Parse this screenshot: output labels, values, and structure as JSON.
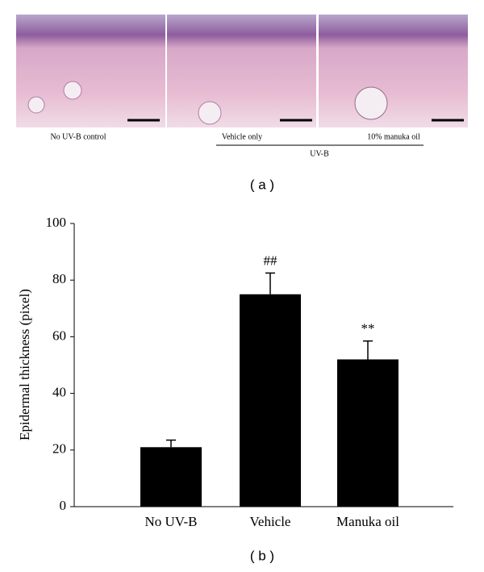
{
  "panel_a": {
    "image_labels": [
      "No UV-B control",
      "Vehicle only",
      "10% manuka oil"
    ],
    "group_label": "UV-B",
    "panel_label": "( a )"
  },
  "chart_data": {
    "type": "bar",
    "y_label": "Epidermal thickness (pixel)",
    "categories": [
      "No UV-B",
      "Vehicle",
      "Manuka oil"
    ],
    "values": [
      21,
      75,
      52
    ],
    "errors": [
      2.5,
      7.5,
      6.5
    ],
    "color": "#000000",
    "annotations": [
      {
        "category": "Vehicle",
        "text": "##"
      },
      {
        "category": "Manuka oil",
        "text": "**"
      }
    ],
    "ylim": [
      0,
      100
    ],
    "yticks": [
      0,
      20,
      40,
      60,
      80,
      100
    ],
    "grid": false
  },
  "panel_b_label": "( b )"
}
